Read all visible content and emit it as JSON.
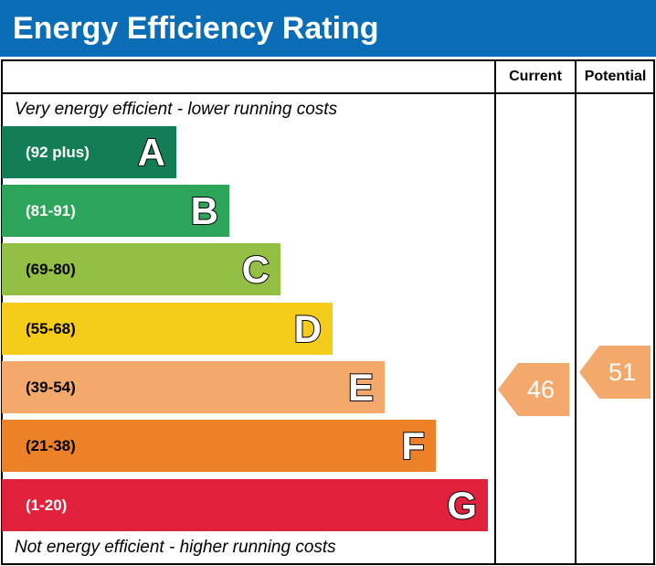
{
  "chart_data": {
    "type": "bar",
    "title": "Energy Efficiency Rating",
    "columns": [
      "Current",
      "Potential"
    ],
    "top_caption": "Very energy efficient - lower running costs",
    "bottom_caption": "Not energy efficient - higher running costs",
    "bands": [
      {
        "letter": "A",
        "range": "(92 plus)",
        "color": "#137e55"
      },
      {
        "letter": "B",
        "range": "(81-91)",
        "color": "#2ca55a"
      },
      {
        "letter": "C",
        "range": "(69-80)",
        "color": "#93bf45"
      },
      {
        "letter": "D",
        "range": "(55-68)",
        "color": "#f6cc1a"
      },
      {
        "letter": "E",
        "range": "(39-54)",
        "color": "#f2a96b"
      },
      {
        "letter": "F",
        "range": "(21-38)",
        "color": "#ed8128"
      },
      {
        "letter": "G",
        "range": "(1-20)",
        "color": "#e2213c"
      }
    ],
    "current": {
      "value": "46",
      "band": "E",
      "color": "#f2a96b"
    },
    "potential": {
      "value": "51",
      "band": "E",
      "color": "#f2a96b"
    }
  }
}
